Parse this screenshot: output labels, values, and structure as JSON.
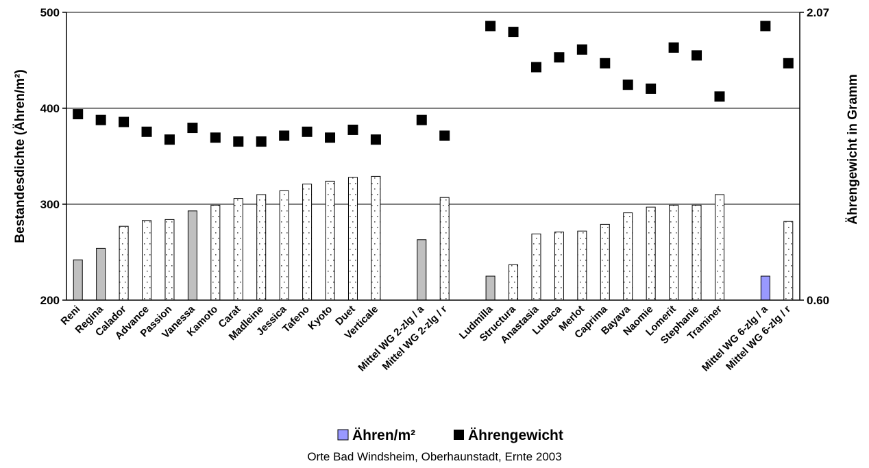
{
  "chart_data": {
    "type": "bar",
    "caption": "Orte Bad Windsheim, Oberhaunstadt, Ernte 2003",
    "ylabel": "Bestandesdichte (Ähren/m²)",
    "y2label": "Ährengewicht in Gramm",
    "ylim": [
      200,
      500
    ],
    "y2lim": [
      0.6,
      2.07
    ],
    "yticks": [
      200,
      300,
      400,
      500
    ],
    "y2ticks": [
      "0.60",
      "2.07"
    ],
    "grid": "horizontal",
    "legend_position": "bottom",
    "categories": [
      "Reni",
      "Regina",
      "Calador",
      "Advance",
      "Passion",
      "Vanessa",
      "Kamoto",
      "Carat",
      "Madleine",
      "Jessica",
      "Tafeno",
      "Kyoto",
      "Duet",
      "Verticale",
      "",
      "Mittel WG 2-zlg / a",
      "Mittel WG 2-zlg / r",
      "",
      "Ludmilla",
      "Structura",
      "Anastasia",
      "Lubeca",
      "Merlot",
      "Caprima",
      "Bayava",
      "Naomie",
      "Lomerit",
      "Stephanie",
      "Traminer",
      "",
      "Mittel WG 6-zlg / a",
      "Mittel WG 6-zlg / r"
    ],
    "series": [
      {
        "name": "Ähren/m²",
        "type": "bar",
        "axis": "left",
        "color": "#9999ff",
        "values": [
          242,
          254,
          277,
          283,
          284,
          293,
          299,
          306,
          310,
          314,
          321,
          324,
          328,
          329,
          null,
          263,
          307,
          null,
          225,
          237,
          269,
          271,
          272,
          279,
          291,
          297,
          299,
          299,
          310,
          null,
          225,
          282
        ],
        "fills": [
          "gray",
          "gray",
          "dotted",
          "dotted",
          "dotted",
          "gray",
          "dotted",
          "dotted",
          "dotted",
          "dotted",
          "dotted",
          "dotted",
          "dotted",
          "dotted",
          null,
          "gray",
          "dotted",
          null,
          "gray",
          "dotted",
          "dotted",
          "dotted",
          "dotted",
          "dotted",
          "dotted",
          "dotted",
          "dotted",
          "dotted",
          "dotted",
          null,
          "blue",
          "dotted"
        ]
      },
      {
        "name": "Ährengewicht",
        "type": "scatter",
        "axis": "right",
        "color": "#000000",
        "values": [
          1.55,
          1.52,
          1.51,
          1.46,
          1.42,
          1.48,
          1.43,
          1.41,
          1.41,
          1.44,
          1.46,
          1.43,
          1.47,
          1.42,
          null,
          1.52,
          1.44,
          null,
          2.0,
          1.97,
          1.79,
          1.84,
          1.88,
          1.81,
          1.7,
          1.68,
          1.89,
          1.85,
          1.64,
          null,
          2.0,
          1.81
        ]
      }
    ]
  }
}
